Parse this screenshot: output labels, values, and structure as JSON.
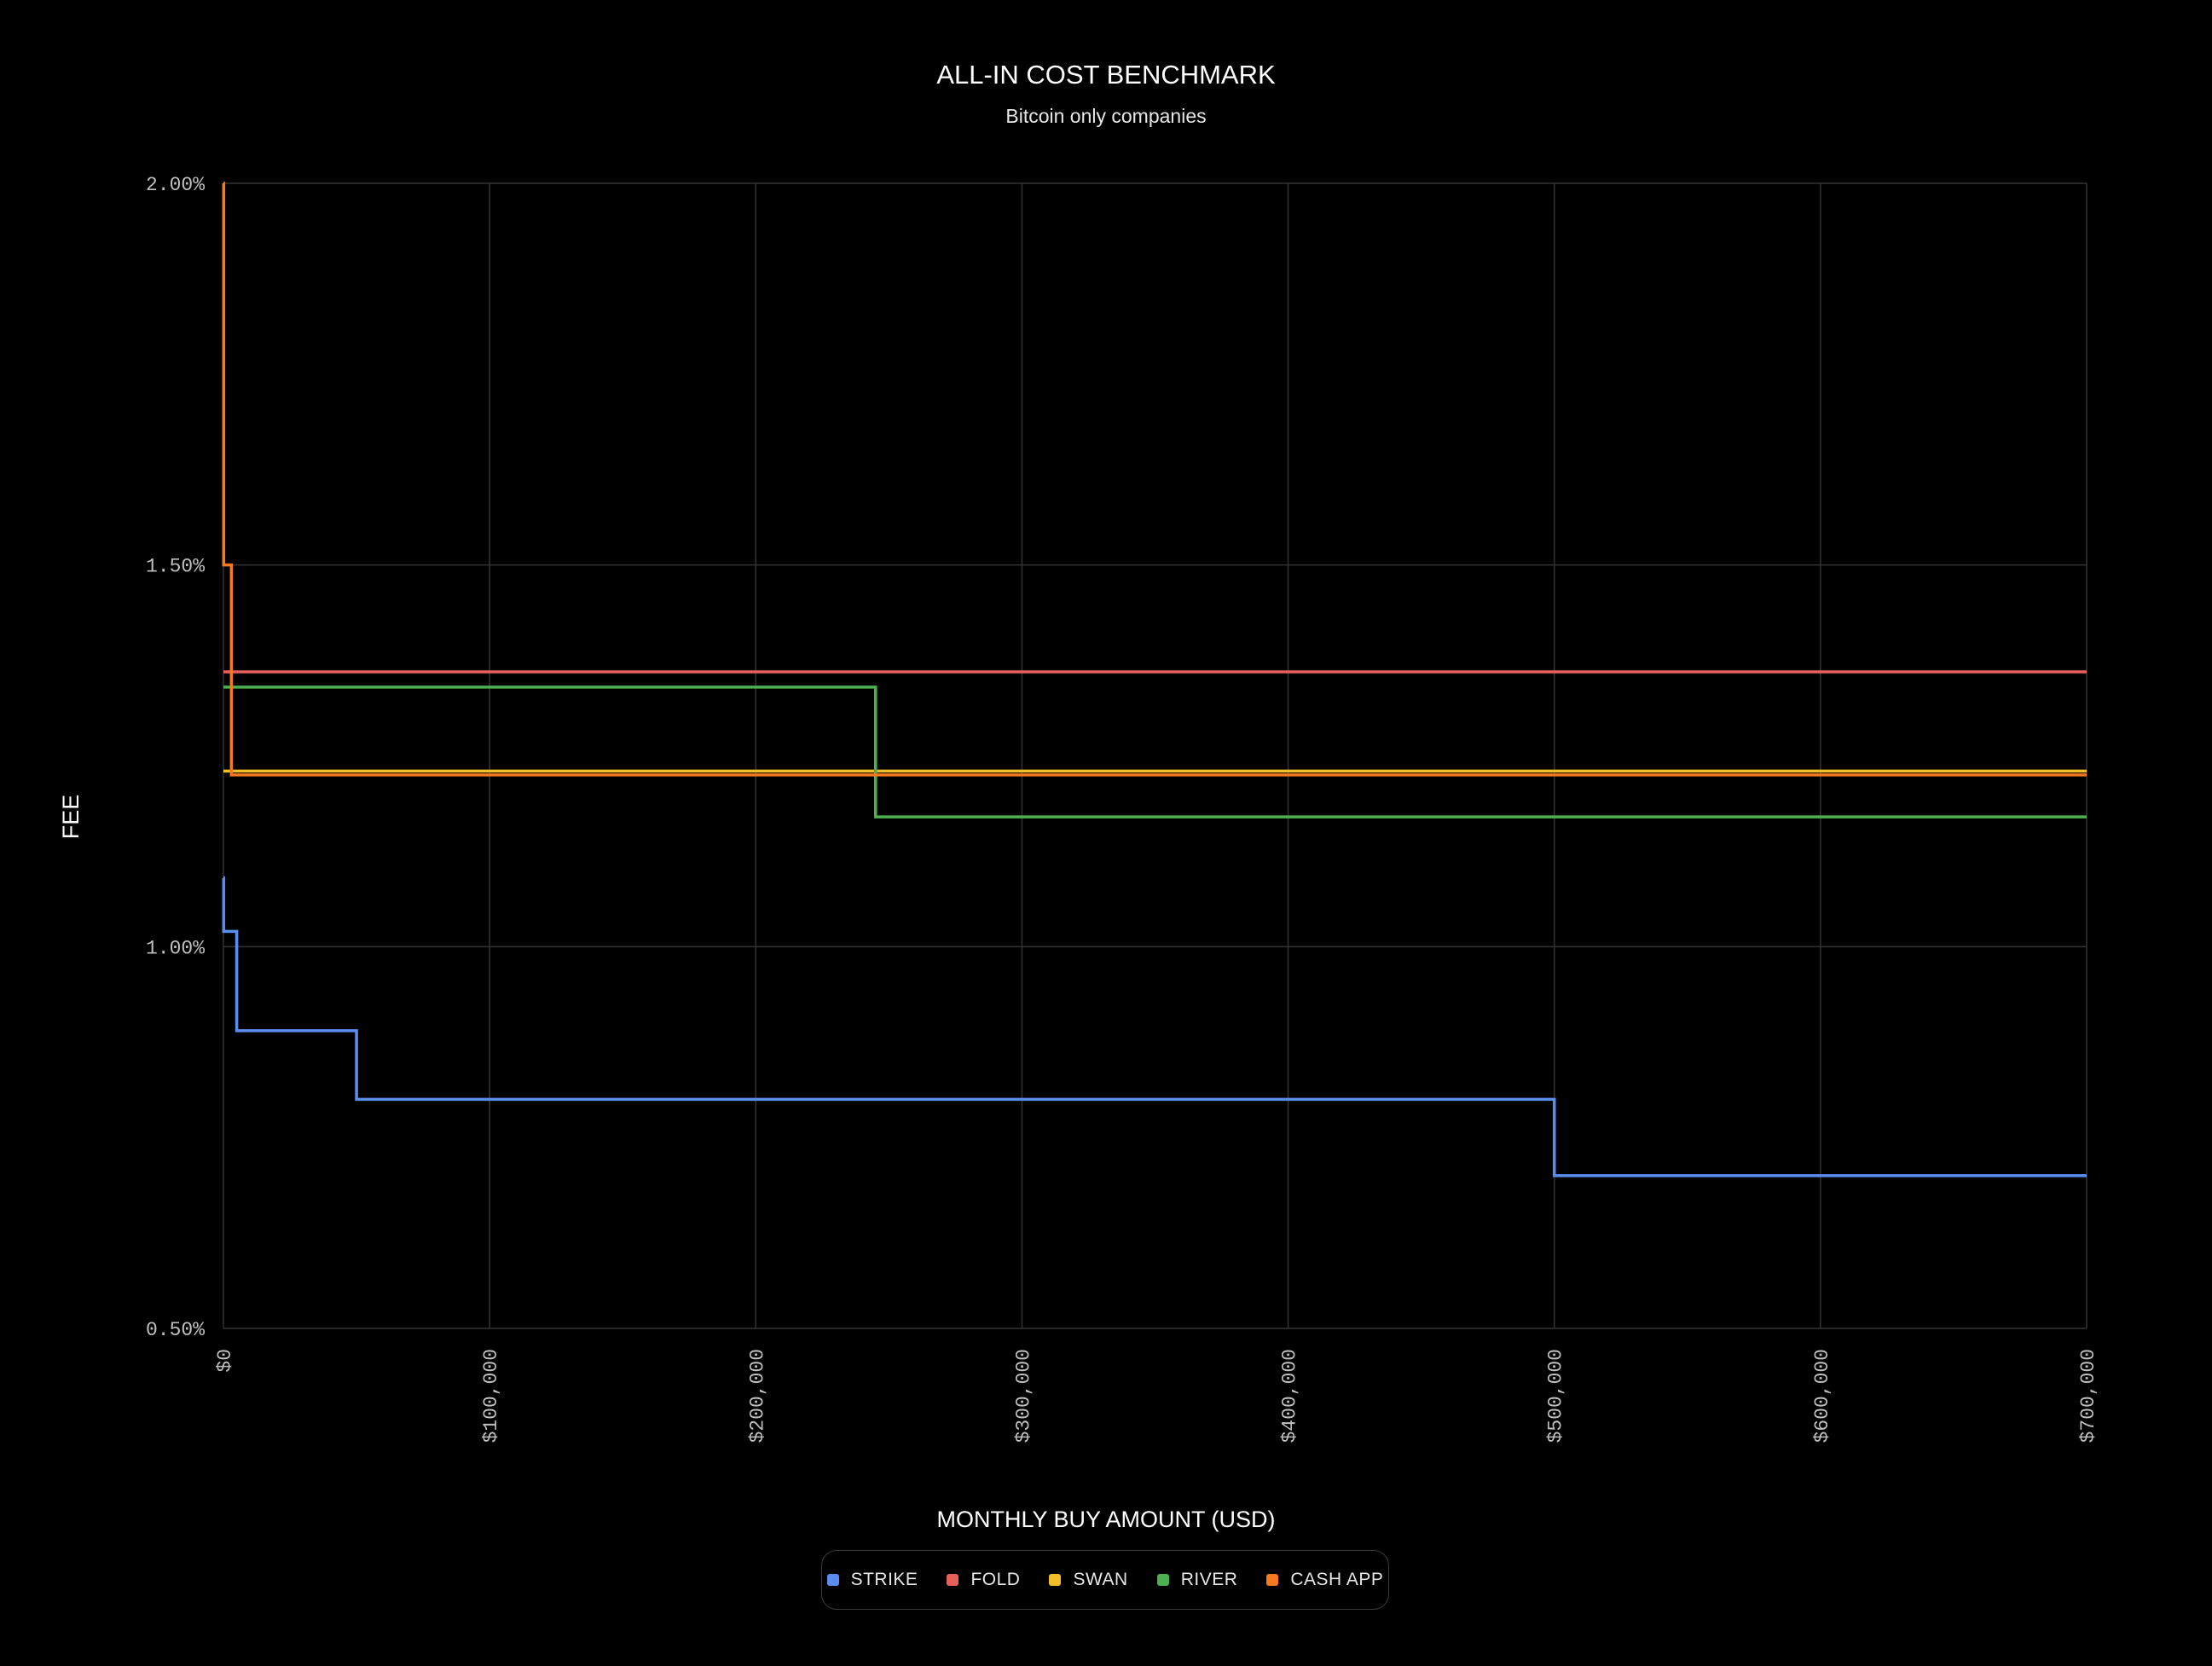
{
  "chart_data": {
    "type": "line",
    "step": true,
    "title": "ALL-IN COST BENCHMARK",
    "subtitle": "Bitcoin only companies",
    "xlabel": "MONTHLY BUY AMOUNT (USD)",
    "ylabel": "FEE",
    "xlim": [
      0,
      700000
    ],
    "ylim": [
      0.5,
      2.0
    ],
    "x_ticks": [
      0,
      100000,
      200000,
      300000,
      400000,
      500000,
      600000,
      700000
    ],
    "x_tick_labels": [
      "$0",
      "$100,000",
      "$200,000",
      "$300,000",
      "$400,000",
      "$500,000",
      "$600,000",
      "$700,000"
    ],
    "y_ticks": [
      0.5,
      1.0,
      1.5,
      2.0
    ],
    "y_tick_labels": [
      "0.50%",
      "1.00%",
      "1.50%",
      "2.00%"
    ],
    "grid": true,
    "legend_position": "bottom-center",
    "series": [
      {
        "name": "STRIKE",
        "color": "#5b8def",
        "x": [
          0,
          100,
          5000,
          50000,
          500000,
          700000
        ],
        "y": [
          1.09,
          1.02,
          0.89,
          0.8,
          0.7,
          0.7
        ]
      },
      {
        "name": "FOLD",
        "color": "#e8605a",
        "x": [
          0,
          700000
        ],
        "y": [
          1.36,
          1.36
        ]
      },
      {
        "name": "SWAN",
        "color": "#f2bf2a",
        "x": [
          0,
          700000
        ],
        "y": [
          1.23,
          1.23
        ]
      },
      {
        "name": "RIVER",
        "color": "#4caf50",
        "x": [
          0,
          245000,
          700000
        ],
        "y": [
          1.34,
          1.17,
          1.17
        ]
      },
      {
        "name": "CASH APP",
        "color": "#f5791f",
        "x": [
          0,
          100,
          3000,
          700000
        ],
        "y": [
          2.0,
          1.5,
          1.225,
          1.225
        ]
      }
    ]
  }
}
